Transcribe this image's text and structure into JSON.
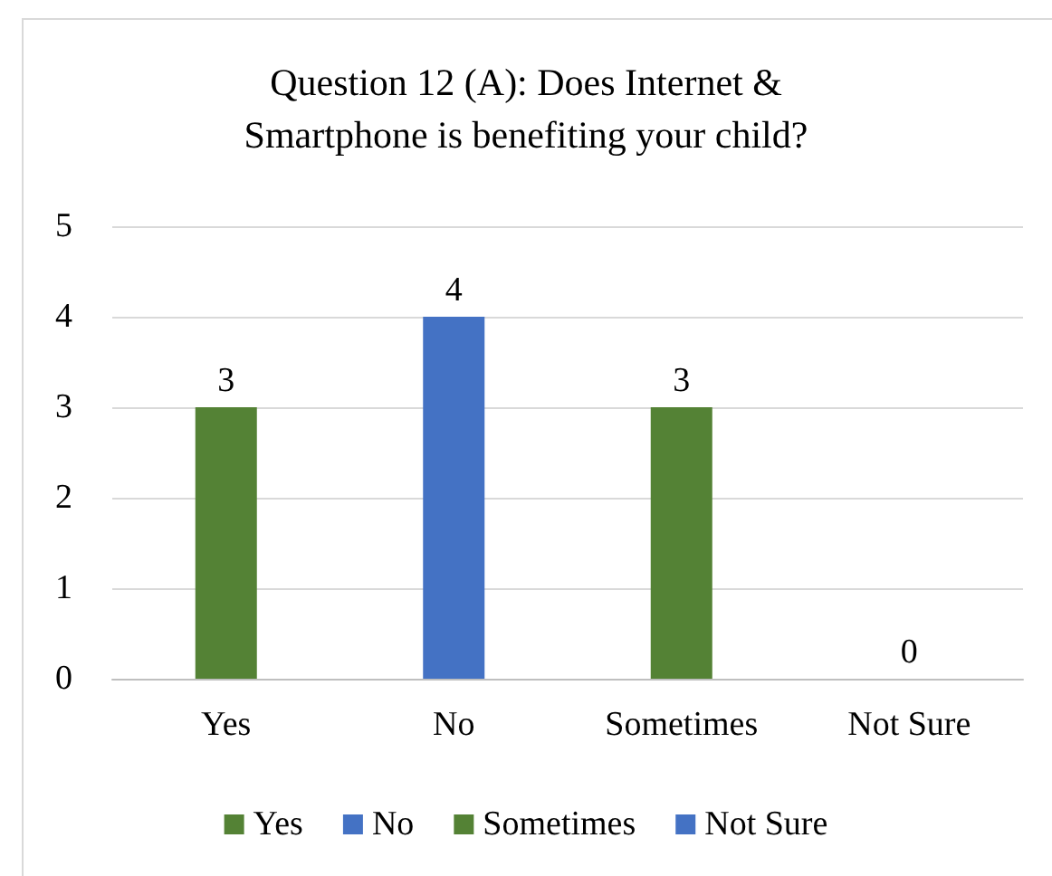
{
  "chart_data": {
    "type": "bar",
    "title": "Question 12 (A): Does Internet &\nSmartphone is benefiting your child?",
    "categories": [
      "Yes",
      "No",
      "Sometimes",
      "Not Sure"
    ],
    "series": [
      {
        "name": "Yes",
        "color": "#548235",
        "values": [
          3,
          null,
          null,
          null
        ]
      },
      {
        "name": "No",
        "color": "#4472c4",
        "values": [
          null,
          4,
          null,
          null
        ]
      },
      {
        "name": "Sometimes",
        "color": "#548235",
        "values": [
          null,
          null,
          3,
          null
        ]
      },
      {
        "name": "Not Sure",
        "color": "#4472c4",
        "values": [
          null,
          null,
          null,
          0
        ]
      }
    ],
    "ylim": [
      0,
      5
    ],
    "yticks": [
      0,
      1,
      2,
      3,
      4,
      5
    ],
    "grid": "y",
    "legend": "bottom",
    "data_labels": true
  }
}
